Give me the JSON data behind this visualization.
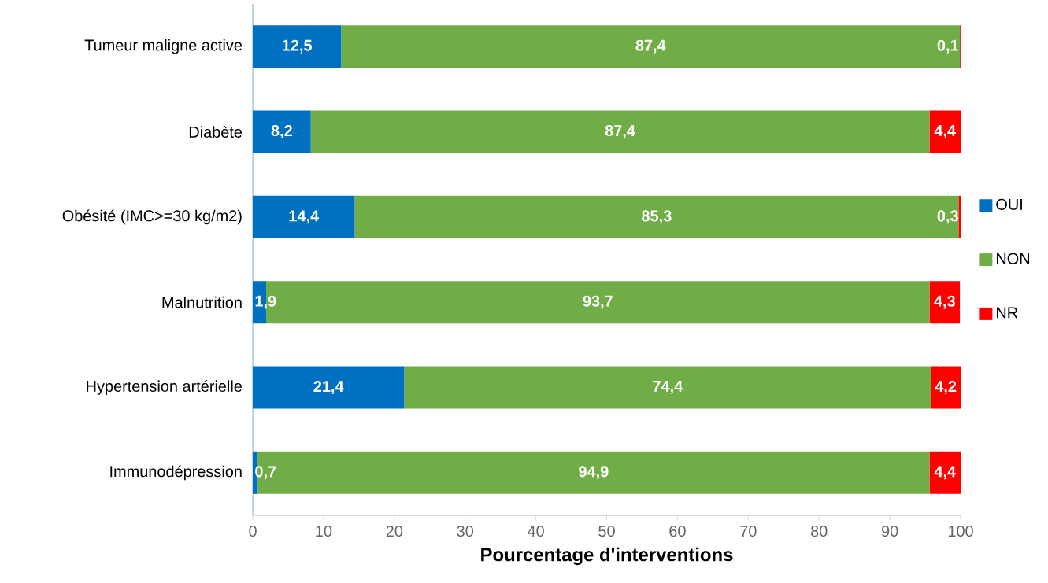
{
  "chart_data": {
    "type": "bar",
    "orientation": "horizontal",
    "stacked": true,
    "categories": [
      "Tumeur maligne active",
      "Diabète",
      "Obésité (IMC>=30 kg/m2)",
      "Malnutrition",
      "Hypertension artérielle",
      "Immunodépression"
    ],
    "series": [
      {
        "name": "OUI",
        "color": "#0070c0",
        "values": [
          12.5,
          8.2,
          14.4,
          1.9,
          21.4,
          0.7
        ],
        "value_labels": [
          "12,5",
          "8,2",
          "14,4",
          "1,9",
          "21,4",
          "0,7"
        ]
      },
      {
        "name": "NON",
        "color": "#70ad47",
        "values": [
          87.4,
          87.4,
          85.3,
          93.7,
          74.4,
          94.9
        ],
        "value_labels": [
          "87,4",
          "87,4",
          "85,3",
          "93,7",
          "74,4",
          "94,9"
        ]
      },
      {
        "name": "NR",
        "color": "#ff0000",
        "values": [
          0.1,
          4.4,
          0.3,
          4.3,
          4.2,
          4.4
        ],
        "value_labels": [
          "0,1",
          "4,4",
          "0,3",
          "4,3",
          "4,2",
          "4,4"
        ]
      }
    ],
    "xlim": [
      0,
      100
    ],
    "xticks": [
      0,
      10,
      20,
      30,
      40,
      50,
      60,
      70,
      80,
      90,
      100
    ],
    "xlabel": "Pourcentage d'interventions",
    "legend": "right",
    "grid": false
  }
}
